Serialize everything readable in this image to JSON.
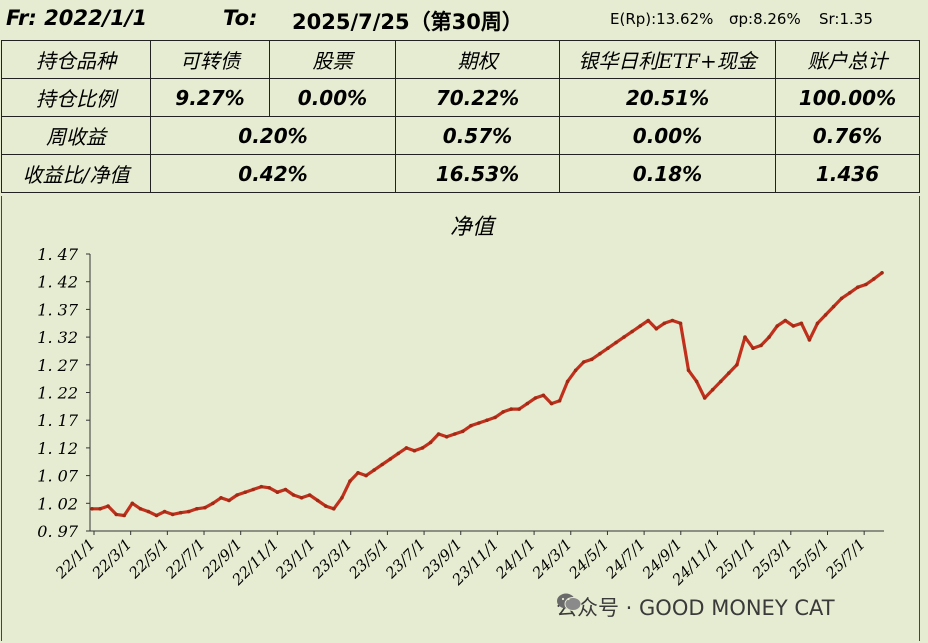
{
  "header": {
    "from_label": "Fr: 2022/1/1",
    "to_label": "To:",
    "to_date": "2025/7/25（第30周）",
    "e_rp": "E(Rp):13.62%",
    "sigma_p": "σp:8.26%",
    "sharpe": "Sr:1.35"
  },
  "table": {
    "header_row": [
      "持仓品种",
      "可转债",
      "股票",
      "期权",
      "银华日利ETF+现金",
      "账户总计"
    ],
    "position_row": [
      "持仓比例",
      "9.27%",
      "0.00%",
      "70.22%",
      "20.51%",
      "100.00%"
    ],
    "weekly_row_label": "周收益",
    "weekly_values": [
      "0.20%",
      "0.57%",
      "0.00%",
      "0.76%"
    ],
    "ratio_row_label": "收益比/净值",
    "ratio_values": [
      "0.42%",
      "16.53%",
      "0.18%",
      "1.436"
    ]
  },
  "chart_data": {
    "type": "line",
    "title": "净值",
    "xlabel": "",
    "ylabel": "",
    "ylim": [
      0.97,
      1.47
    ],
    "y_ticks": [
      "0.97",
      "1.02",
      "1.07",
      "1.12",
      "1.17",
      "1.22",
      "1.27",
      "1.32",
      "1.37",
      "1.42",
      "1.47"
    ],
    "x_ticks": [
      "22/1/1",
      "22/3/1",
      "22/5/1",
      "22/7/1",
      "22/9/1",
      "22/11/1",
      "23/1/1",
      "23/3/1",
      "23/5/1",
      "23/7/1",
      "23/9/1",
      "23/11/1",
      "24/1/1",
      "24/3/1",
      "24/5/1",
      "24/7/1",
      "24/9/1",
      "24/11/1",
      "25/1/1",
      "25/3/1",
      "25/5/1",
      "25/7/1"
    ],
    "grid": false,
    "line_color": "#c0301c",
    "series": [
      {
        "values": [
          1.01,
          1.01,
          1.015,
          1.0,
          0.998,
          1.02,
          1.01,
          1.005,
          0.998,
          1.005,
          1.0,
          1.003,
          1.005,
          1.01,
          1.012,
          1.02,
          1.03,
          1.025,
          1.035,
          1.04,
          1.045,
          1.05,
          1.048,
          1.04,
          1.045,
          1.035,
          1.03,
          1.035,
          1.025,
          1.015,
          1.01,
          1.03,
          1.06,
          1.075,
          1.07,
          1.08,
          1.09,
          1.1,
          1.11,
          1.12,
          1.115,
          1.12,
          1.13,
          1.145,
          1.14,
          1.145,
          1.15,
          1.16,
          1.165,
          1.17,
          1.175,
          1.185,
          1.19,
          1.19,
          1.2,
          1.21,
          1.215,
          1.2,
          1.205,
          1.24,
          1.26,
          1.275,
          1.28,
          1.29,
          1.3,
          1.31,
          1.32,
          1.33,
          1.34,
          1.35,
          1.335,
          1.345,
          1.35,
          1.345,
          1.26,
          1.24,
          1.21,
          1.225,
          1.24,
          1.255,
          1.27,
          1.32,
          1.3,
          1.305,
          1.32,
          1.34,
          1.35,
          1.34,
          1.345,
          1.315,
          1.345,
          1.36,
          1.375,
          1.39,
          1.4,
          1.41,
          1.415,
          1.425,
          1.436
        ]
      }
    ]
  },
  "watermark": {
    "text": "公众号 · GOOD MONEY CAT",
    "icon": "wechat-icon"
  }
}
